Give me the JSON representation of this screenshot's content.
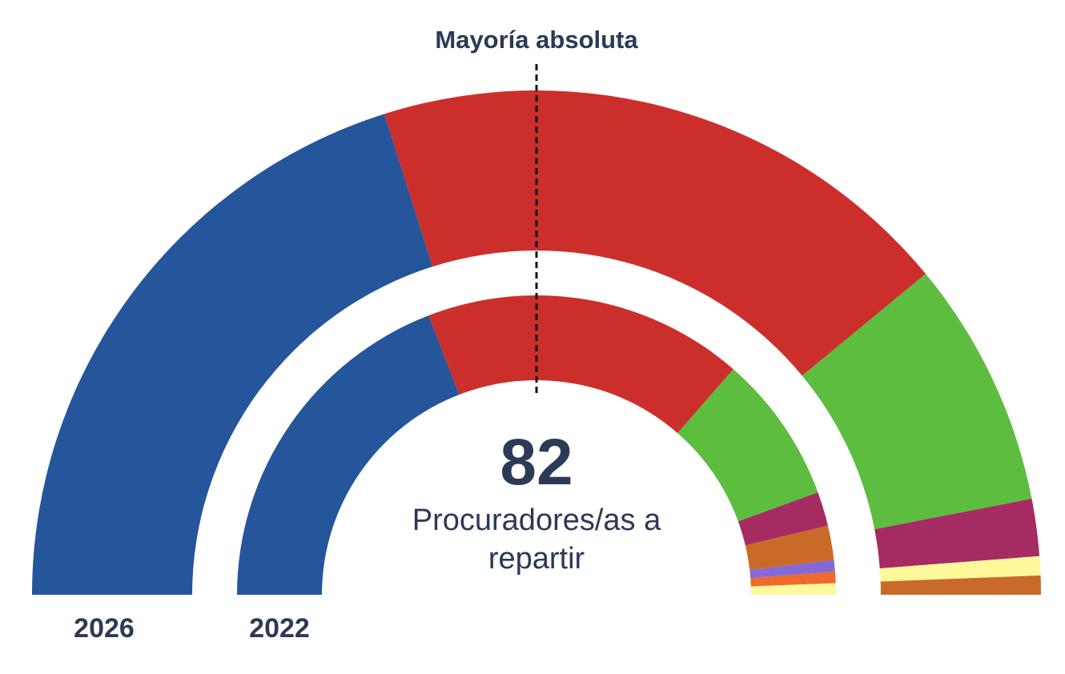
{
  "chart_data": {
    "type": "parliament-donut",
    "total_seats": 82,
    "total_caption": "Procuradores/as a repartir",
    "majority_label": "Mayoría absoluta",
    "rings": [
      {
        "label": "2026",
        "position": "outer",
        "segments": [
          {
            "color": "#25559b",
            "value": 33
          },
          {
            "color": "#cc2f2b",
            "value": 31
          },
          {
            "color": "#5cbd3f",
            "value": 13
          },
          {
            "color": "#a72b63",
            "value": 3
          },
          {
            "color": "#fdf89a",
            "value": 1
          },
          {
            "color": "#c96a28",
            "value": 1
          }
        ]
      },
      {
        "label": "2022",
        "position": "inner",
        "segments": [
          {
            "color": "#25559b",
            "value": 31
          },
          {
            "color": "#cc2f2b",
            "value": 28
          },
          {
            "color": "#5cbd3f",
            "value": 13
          },
          {
            "color": "#a72b63",
            "value": 3
          },
          {
            "color": "#c96a28",
            "value": 3
          },
          {
            "color": "#8668d6",
            "value": 1
          },
          {
            "color": "#ee6b2c",
            "value": 1
          },
          {
            "color": "#fdf89a",
            "value": 1
          }
        ]
      }
    ]
  }
}
